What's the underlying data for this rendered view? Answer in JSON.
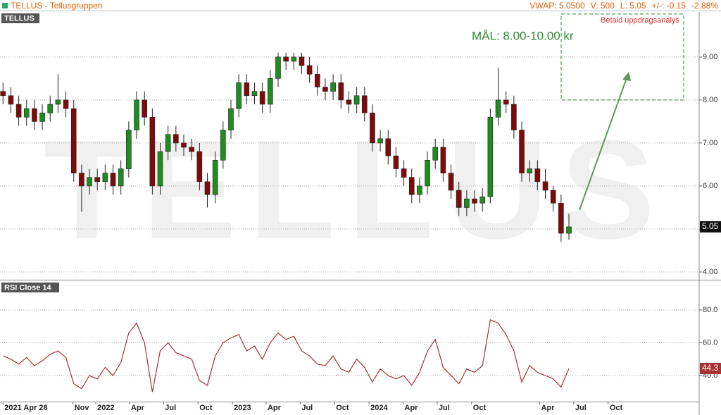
{
  "header": {
    "title": "TELLUS - Tellusgruppen",
    "vwap": "VWAP: 5.0500",
    "volume": "V: 500",
    "last": "L: 5.05",
    "change": "+/-: -0.15",
    "change_pct": "-2.88%"
  },
  "chart_data": [
    {
      "type": "candlestick",
      "title": "TELLUS",
      "watermark": "TELLUS",
      "x": [
        "2021-04-28",
        "2021-05-19",
        "2021-06-09",
        "2021-06-30",
        "2021-07-21",
        "2021-08-11",
        "2021-09-01",
        "2021-09-22",
        "2021-10-13",
        "2021-11-03",
        "2021-11-24",
        "2021-12-15",
        "2022-01-05",
        "2022-01-26",
        "2022-02-16",
        "2022-03-09",
        "2022-03-30",
        "2022-04-20",
        "2022-05-11",
        "2022-06-01",
        "2022-06-22",
        "2022-07-13",
        "2022-08-03",
        "2022-08-24",
        "2022-09-14",
        "2022-10-05",
        "2022-10-26",
        "2022-11-16",
        "2022-12-07",
        "2022-12-28",
        "2023-01-18",
        "2023-02-08",
        "2023-03-01",
        "2023-03-22",
        "2023-04-12",
        "2023-05-03",
        "2023-05-24",
        "2023-06-14",
        "2023-07-05",
        "2023-07-26",
        "2023-08-16",
        "2023-09-06",
        "2023-09-27",
        "2023-10-18",
        "2023-11-08",
        "2023-11-29",
        "2023-12-20",
        "2024-01-10",
        "2024-01-31",
        "2024-02-21",
        "2024-03-13",
        "2024-04-03",
        "2024-04-24",
        "2024-05-15",
        "2024-06-05",
        "2024-06-26",
        "2024-07-17",
        "2024-08-07",
        "2024-08-28",
        "2024-09-18",
        "2024-10-09",
        "2024-10-30",
        "2024-11-20",
        "2024-12-11",
        "2025-01-01",
        "2025-01-22",
        "2025-02-12",
        "2025-03-05",
        "2025-03-26",
        "2025-04-16",
        "2025-05-07",
        "2025-05-28",
        "2025-06-18"
      ],
      "open": [
        8.2,
        8.1,
        7.9,
        7.6,
        7.8,
        7.5,
        7.7,
        7.9,
        8.0,
        7.8,
        6.3,
        6.0,
        6.2,
        6.1,
        6.3,
        6.0,
        6.4,
        7.3,
        8.0,
        7.6,
        6.0,
        6.8,
        7.2,
        7.0,
        6.9,
        6.8,
        6.1,
        5.8,
        6.6,
        7.3,
        7.8,
        8.4,
        8.1,
        8.2,
        7.9,
        8.5,
        9.0,
        8.9,
        9.0,
        8.8,
        8.6,
        8.3,
        8.2,
        8.4,
        8.0,
        7.9,
        8.1,
        7.7,
        7.0,
        7.1,
        6.7,
        6.4,
        6.2,
        5.8,
        6.0,
        6.6,
        6.9,
        6.3,
        5.9,
        5.5,
        5.7,
        5.6,
        5.75,
        7.6,
        8.0,
        7.9,
        7.3,
        6.3,
        6.4,
        6.1,
        5.9,
        5.6,
        4.9
      ],
      "high": [
        8.4,
        8.3,
        8.1,
        8.0,
        8.0,
        7.9,
        8.1,
        8.6,
        8.2,
        8.0,
        6.5,
        6.4,
        6.4,
        6.5,
        6.5,
        6.6,
        7.5,
        8.2,
        8.2,
        7.8,
        7.0,
        7.4,
        7.4,
        7.2,
        7.1,
        7.0,
        6.3,
        6.8,
        7.5,
        8.0,
        8.6,
        8.6,
        8.4,
        8.4,
        8.7,
        9.1,
        9.1,
        9.1,
        9.1,
        9.0,
        8.8,
        8.5,
        8.6,
        8.6,
        8.2,
        8.3,
        8.3,
        7.9,
        7.3,
        7.3,
        6.9,
        6.6,
        6.4,
        6.2,
        6.8,
        7.1,
        7.1,
        6.5,
        6.1,
        5.9,
        5.9,
        5.95,
        7.8,
        8.75,
        8.2,
        8.1,
        7.5,
        6.6,
        6.6,
        6.4,
        6.0,
        5.8,
        5.35
      ],
      "low": [
        7.9,
        7.7,
        7.4,
        7.4,
        7.3,
        7.3,
        7.5,
        7.7,
        7.6,
        6.1,
        5.4,
        5.8,
        5.9,
        5.9,
        5.8,
        5.8,
        6.2,
        7.1,
        7.4,
        5.8,
        5.8,
        6.6,
        6.8,
        6.7,
        6.6,
        5.9,
        5.5,
        5.6,
        6.4,
        7.1,
        7.6,
        7.9,
        7.9,
        7.7,
        7.7,
        8.3,
        8.7,
        8.7,
        8.6,
        8.4,
        8.1,
        8.0,
        8.0,
        7.8,
        7.7,
        7.7,
        7.5,
        6.8,
        6.8,
        6.5,
        6.2,
        6.0,
        5.6,
        5.6,
        5.8,
        6.4,
        6.1,
        5.7,
        5.3,
        5.3,
        5.4,
        5.4,
        5.6,
        7.4,
        7.7,
        7.1,
        6.1,
        6.1,
        5.9,
        5.7,
        5.4,
        4.7,
        4.75
      ],
      "close": [
        8.1,
        7.9,
        7.6,
        7.8,
        7.5,
        7.7,
        7.9,
        8.0,
        7.8,
        6.3,
        6.0,
        6.2,
        6.1,
        6.3,
        6.0,
        6.4,
        7.3,
        8.0,
        7.6,
        6.0,
        6.8,
        7.2,
        7.0,
        6.9,
        6.8,
        6.1,
        5.8,
        6.6,
        7.3,
        7.8,
        8.4,
        8.1,
        8.2,
        7.9,
        8.5,
        9.0,
        8.9,
        9.0,
        8.8,
        8.6,
        8.3,
        8.2,
        8.4,
        8.0,
        7.9,
        8.1,
        7.7,
        7.0,
        7.1,
        6.7,
        6.4,
        6.2,
        5.8,
        6.0,
        6.6,
        6.9,
        6.3,
        5.9,
        5.5,
        5.7,
        5.6,
        5.75,
        7.6,
        8.0,
        7.9,
        7.3,
        6.3,
        6.4,
        6.1,
        5.9,
        5.6,
        4.9,
        5.05
      ],
      "up_color": "#1f8c1f",
      "down_color": "#7d0b0b",
      "xlim": [
        "2021-04-20",
        "2026-06-01"
      ],
      "ylim": [
        3.82,
        10.03
      ],
      "yticks": [
        {
          "value": 4,
          "label": "4.00"
        },
        {
          "value": 5,
          "label": "5.00"
        },
        {
          "value": 6,
          "label": "6.00"
        },
        {
          "value": 7,
          "label": "7.00"
        },
        {
          "value": 8,
          "label": "8.00"
        },
        {
          "value": 9,
          "label": "9.00"
        }
      ],
      "grid": true,
      "target": {
        "low": 8,
        "high": 10,
        "label": "MÅL: 8.00-10.00 kr",
        "color": "#2e8b2e"
      },
      "note": "Betald uppdragsanalys"
    },
    {
      "type": "line",
      "title": "RSI Close 14",
      "color": "#a83232",
      "x": [
        "2021-04-28",
        "2021-05-19",
        "2021-06-09",
        "2021-06-30",
        "2021-07-21",
        "2021-08-11",
        "2021-09-01",
        "2021-09-22",
        "2021-10-13",
        "2021-11-03",
        "2021-11-24",
        "2021-12-15",
        "2022-01-05",
        "2022-01-26",
        "2022-02-16",
        "2022-03-09",
        "2022-03-30",
        "2022-04-20",
        "2022-05-11",
        "2022-06-01",
        "2022-06-22",
        "2022-07-13",
        "2022-08-03",
        "2022-08-24",
        "2022-09-14",
        "2022-10-05",
        "2022-10-26",
        "2022-11-16",
        "2022-12-07",
        "2022-12-28",
        "2023-01-18",
        "2023-02-08",
        "2023-03-01",
        "2023-03-22",
        "2023-04-12",
        "2023-05-03",
        "2023-05-24",
        "2023-06-14",
        "2023-07-05",
        "2023-07-26",
        "2023-08-16",
        "2023-09-06",
        "2023-09-27",
        "2023-10-18",
        "2023-11-08",
        "2023-11-29",
        "2023-12-20",
        "2024-01-10",
        "2024-01-31",
        "2024-02-21",
        "2024-03-13",
        "2024-04-03",
        "2024-04-24",
        "2024-05-15",
        "2024-06-05",
        "2024-06-26",
        "2024-07-17",
        "2024-08-07",
        "2024-08-28",
        "2024-09-18",
        "2024-10-09",
        "2024-10-30",
        "2024-11-20",
        "2024-12-11",
        "2025-01-01",
        "2025-01-22",
        "2025-02-12",
        "2025-03-05",
        "2025-03-26",
        "2025-04-16",
        "2025-05-07",
        "2025-05-28",
        "2025-06-18"
      ],
      "values": [
        52,
        50,
        47,
        51,
        46,
        49,
        53,
        55,
        51,
        35,
        32,
        40,
        38,
        45,
        40,
        48,
        66,
        72,
        60,
        30,
        55,
        60,
        54,
        52,
        50,
        37,
        34,
        52,
        60,
        63,
        65,
        55,
        58,
        50,
        60,
        66,
        62,
        64,
        55,
        52,
        47,
        46,
        52,
        44,
        42,
        50,
        45,
        36,
        44,
        40,
        38,
        40,
        34,
        42,
        55,
        62,
        45,
        40,
        35,
        44,
        42,
        46,
        74,
        72,
        65,
        55,
        36,
        46,
        42,
        40,
        38,
        33,
        44.3
      ],
      "xlim": [
        "2021-04-20",
        "2026-06-01"
      ],
      "ylim": [
        24.1,
        97.6
      ],
      "yticks": [
        {
          "value": 40,
          "label": "40.0"
        },
        {
          "value": 60,
          "label": "60.0"
        },
        {
          "value": 80,
          "label": "80.0"
        }
      ],
      "grid": true,
      "xticks": [
        {
          "value": "2021-04-28",
          "label": "2021 Apr 28"
        },
        {
          "value": "2021-11-01",
          "label": "Nov"
        },
        {
          "value": "2022-01-01",
          "label": "2022"
        },
        {
          "value": "2022-04-01",
          "label": "Apr"
        },
        {
          "value": "2022-07-01",
          "label": "Jul"
        },
        {
          "value": "2022-10-01",
          "label": "Oct"
        },
        {
          "value": "2023-01-01",
          "label": "2023"
        },
        {
          "value": "2023-04-01",
          "label": "Apr"
        },
        {
          "value": "2023-07-01",
          "label": "Jul"
        },
        {
          "value": "2023-10-01",
          "label": "Oct"
        },
        {
          "value": "2024-01-01",
          "label": "2024"
        },
        {
          "value": "2024-04-01",
          "label": "Apr"
        },
        {
          "value": "2024-07-01",
          "label": "Jul"
        },
        {
          "value": "2024-10-01",
          "label": "Oct"
        },
        {
          "value": "2025-04-01",
          "label": "Apr"
        },
        {
          "value": "2025-07-01",
          "label": "Jul"
        },
        {
          "value": "2025-10-01",
          "label": "Oct"
        }
      ]
    }
  ]
}
